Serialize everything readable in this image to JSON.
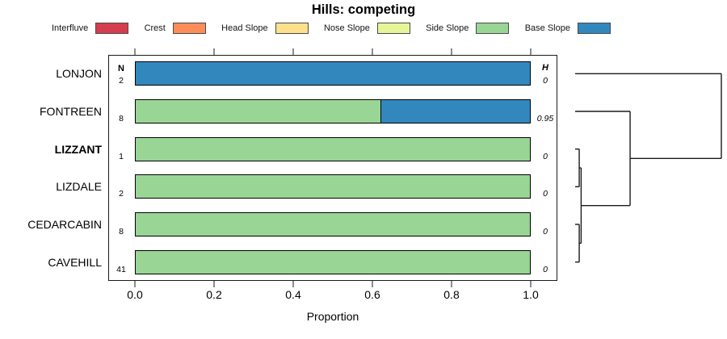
{
  "title": "Hills: competing",
  "legend": [
    {
      "label": "Interfluve",
      "color": "#D53E4F"
    },
    {
      "label": "Crest",
      "color": "#FC8D59"
    },
    {
      "label": "Head Slope",
      "color": "#FEE08B"
    },
    {
      "label": "Nose Slope",
      "color": "#E6F598"
    },
    {
      "label": "Side Slope",
      "color": "#99D594"
    },
    {
      "label": "Base Slope",
      "color": "#3288BD"
    }
  ],
  "columns": {
    "n_header": "N",
    "h_header": "H"
  },
  "chart_data": {
    "type": "bar",
    "variant": "horizontal-stacked-proportion-with-dendrogram",
    "title": "Hills: competing",
    "xlabel": "Proportion",
    "xlim": [
      0,
      1
    ],
    "xticks": [
      0.0,
      0.2,
      0.4,
      0.6,
      0.8,
      1.0
    ],
    "xtick_labels": [
      "0.0",
      "0.2",
      "0.4",
      "0.6",
      "0.8",
      "1.0"
    ],
    "grid": false,
    "categories": [
      "LONJON",
      "FONTREEN",
      "LIZZANT",
      "LIZDALE",
      "CEDARCABIN",
      "CAVEHILL"
    ],
    "bold_categories": [
      "LIZZANT"
    ],
    "rows": [
      {
        "label": "LONJON",
        "n": 2,
        "h": "0",
        "segments": [
          {
            "name": "Base Slope",
            "color": "#3288BD",
            "value": 1.0
          }
        ]
      },
      {
        "label": "FONTREEN",
        "n": 8,
        "h": "0.95",
        "segments": [
          {
            "name": "Side Slope",
            "color": "#99D594",
            "value": 0.625
          },
          {
            "name": "Base Slope",
            "color": "#3288BD",
            "value": 0.375
          }
        ]
      },
      {
        "label": "LIZZANT",
        "n": 1,
        "h": "0",
        "segments": [
          {
            "name": "Side Slope",
            "color": "#99D594",
            "value": 1.0
          }
        ]
      },
      {
        "label": "LIZDALE",
        "n": 2,
        "h": "0",
        "segments": [
          {
            "name": "Side Slope",
            "color": "#99D594",
            "value": 1.0
          }
        ]
      },
      {
        "label": "CEDARCABIN",
        "n": 8,
        "h": "0",
        "segments": [
          {
            "name": "Side Slope",
            "color": "#99D594",
            "value": 1.0
          }
        ]
      },
      {
        "label": "CAVEHILL",
        "n": 41,
        "h": "0",
        "segments": [
          {
            "name": "Side Slope",
            "color": "#99D594",
            "value": 1.0
          }
        ]
      }
    ],
    "dendrogram": {
      "orientation": "right",
      "merges": [
        {
          "a": "leaf2",
          "b": "leaf3",
          "height": 0.028
        },
        {
          "a": "leaf4",
          "b": "leaf5",
          "height": 0.028
        },
        {
          "a": "merge0",
          "b": "merge1",
          "height": 0.041
        },
        {
          "a": "leaf1",
          "b": "merge2",
          "height": 0.376
        },
        {
          "a": "leaf0",
          "b": "merge3",
          "height": 1.0
        }
      ]
    }
  }
}
